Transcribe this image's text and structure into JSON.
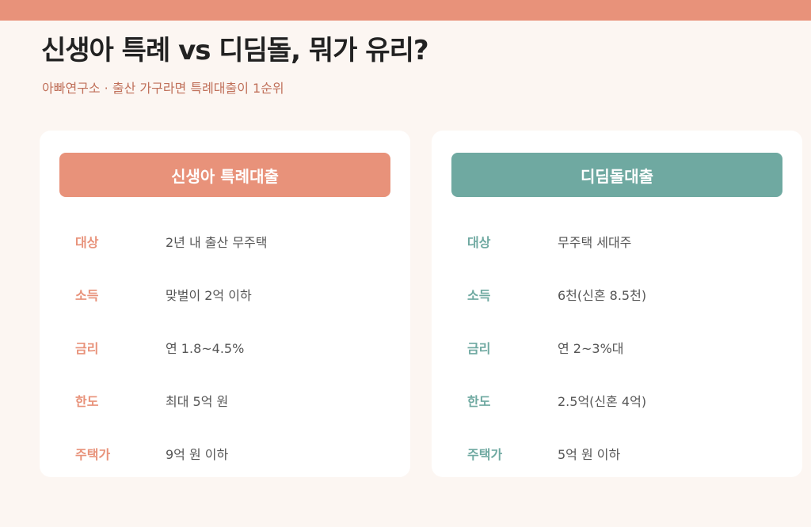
{
  "header": {
    "title": "신생아 특례 vs 디딤돌, 뭐가 유리?",
    "subtitle": "아빠연구소 · 출산 가구라면 특례대출이 1순위"
  },
  "cards": [
    {
      "title": "신생아 특례대출",
      "rows": [
        [
          "대상",
          "2년 내 출산 무주택"
        ],
        [
          "소득",
          "맞벌이 2억 이하"
        ],
        [
          "금리",
          "연 1.8~4.5%"
        ],
        [
          "한도",
          "최대 5억 원"
        ],
        [
          "주택가",
          "9억 원 이하"
        ]
      ]
    },
    {
      "title": "디딤돌대출",
      "rows": [
        [
          "대상",
          "무주택 세대주"
        ],
        [
          "소득",
          "6천(신혼 8.5천)"
        ],
        [
          "금리",
          "연 2~3%대"
        ],
        [
          "한도",
          "2.5억(신혼 4억)"
        ],
        [
          "주택가",
          "5억 원 이하"
        ]
      ]
    }
  ]
}
